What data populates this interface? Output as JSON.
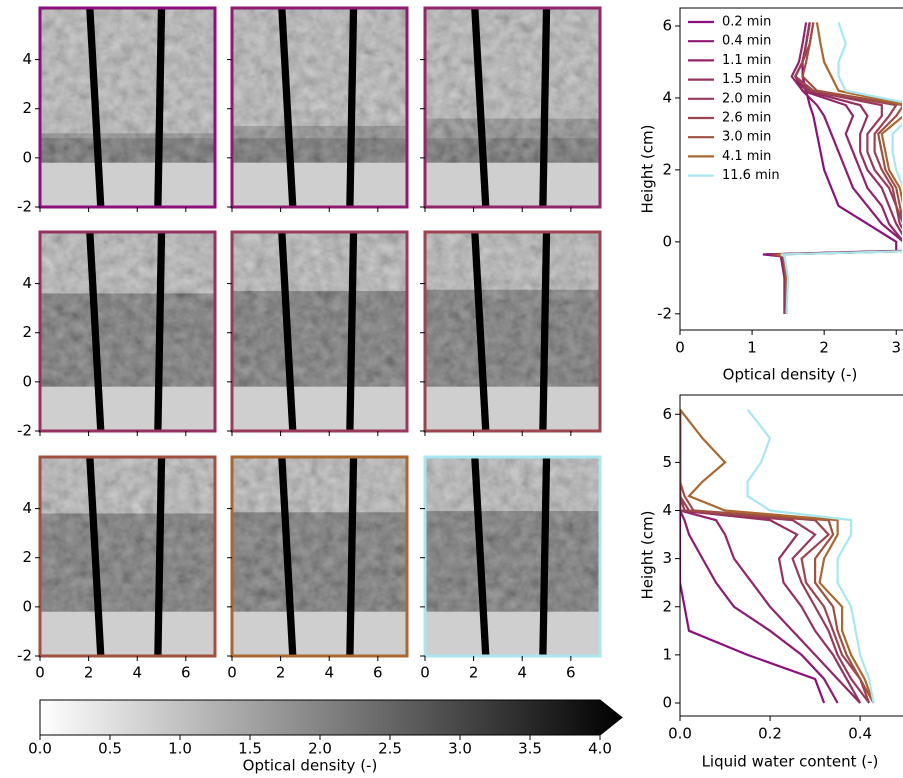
{
  "chart_data": [
    {
      "type": "image_grid",
      "xlim": [
        0,
        7.2
      ],
      "xticks": [
        0,
        2,
        4,
        6
      ],
      "ylim": [
        -2,
        6.1
      ],
      "yticks": [
        -2,
        0,
        2,
        4
      ],
      "panels": 9
    },
    {
      "type": "colorbar",
      "xlim": [
        0,
        4
      ],
      "xticks": [
        {
          "value": 0,
          "label": "0.0"
        },
        {
          "value": 0.5,
          "label": "0.5"
        },
        {
          "value": 1,
          "label": "1.0"
        },
        {
          "value": 1.5,
          "label": "1.5"
        },
        {
          "value": 2,
          "label": "2.0"
        },
        {
          "value": 2.5,
          "label": "2.5"
        },
        {
          "value": 3,
          "label": "3.0"
        },
        {
          "value": 3.5,
          "label": "3.5"
        },
        {
          "value": 4,
          "label": "4.0"
        }
      ],
      "xlabel": "Optical density (-)"
    },
    {
      "type": "line",
      "xlabel": "Optical density (-)",
      "ylabel": "Height (cm)",
      "xlim": [
        0,
        3.08
      ],
      "xticks": [
        0,
        1,
        2,
        3
      ],
      "ylim": [
        -2.45,
        6.5
      ],
      "yticks": [
        -2,
        0,
        2,
        4,
        6
      ],
      "legend": "upper left",
      "y": [
        -2,
        -1,
        -0.4,
        -0.35,
        -0.25,
        0,
        0.5,
        1,
        1.5,
        2,
        2.5,
        3,
        3.5,
        3.8,
        4.2,
        4.6,
        5,
        5.5,
        6.1
      ],
      "series": [
        {
          "name": "0.2 min",
          "color": "#8b0f7d",
          "values": [
            1.45,
            1.45,
            1.4,
            1.15,
            3.0,
            3.0,
            2.6,
            2.2,
            2.1,
            2.0,
            1.95,
            1.9,
            1.85,
            1.8,
            1.75,
            1.7,
            1.7,
            1.75,
            1.8
          ]
        },
        {
          "name": "0.4 min",
          "color": "#8f1a72",
          "values": [
            1.45,
            1.45,
            1.4,
            1.2,
            3.1,
            3.1,
            2.8,
            2.6,
            2.4,
            2.3,
            2.2,
            2.1,
            2.0,
            1.9,
            1.7,
            1.6,
            1.7,
            1.75,
            1.8
          ]
        },
        {
          "name": "1.1 min",
          "color": "#93256a",
          "values": [
            1.45,
            1.47,
            1.42,
            1.25,
            3.2,
            3.1,
            2.9,
            2.8,
            2.6,
            2.5,
            2.4,
            2.3,
            2.4,
            2.3,
            1.7,
            1.55,
            1.65,
            1.7,
            1.75
          ]
        },
        {
          "name": "1.5 min",
          "color": "#963060",
          "values": [
            1.46,
            1.46,
            1.42,
            1.25,
            3.2,
            3.15,
            3.0,
            2.9,
            2.8,
            2.6,
            2.5,
            2.5,
            2.6,
            2.5,
            1.75,
            1.6,
            1.7,
            1.75,
            1.8
          ]
        },
        {
          "name": "2.0 min",
          "color": "#993a58",
          "values": [
            1.46,
            1.47,
            1.43,
            1.3,
            3.25,
            3.2,
            3.05,
            3.0,
            2.9,
            2.7,
            2.6,
            2.6,
            2.8,
            2.8,
            1.8,
            1.6,
            1.7,
            1.75,
            1.8
          ]
        },
        {
          "name": "2.6 min",
          "color": "#9c4450",
          "values": [
            1.47,
            1.47,
            1.43,
            1.3,
            3.25,
            3.2,
            3.1,
            3.0,
            2.95,
            2.8,
            2.7,
            2.7,
            2.9,
            3.0,
            1.85,
            1.6,
            1.7,
            1.8,
            1.85
          ]
        },
        {
          "name": "3.0 min",
          "color": "#a05040",
          "values": [
            1.47,
            1.48,
            1.44,
            1.35,
            3.3,
            3.25,
            3.1,
            3.05,
            3.0,
            2.85,
            2.8,
            2.75,
            3.0,
            3.1,
            1.9,
            1.7,
            1.75,
            1.8,
            1.85
          ]
        },
        {
          "name": "4.1 min",
          "color": "#a86830",
          "values": [
            1.48,
            1.48,
            1.44,
            1.35,
            3.3,
            3.25,
            3.15,
            3.1,
            3.05,
            2.9,
            2.85,
            2.8,
            3.1,
            3.15,
            2.2,
            2.1,
            2.0,
            1.95,
            1.9
          ]
        },
        {
          "name": "11.6 min",
          "color": "#a8e6f0",
          "values": [
            1.48,
            1.5,
            1.45,
            1.4,
            3.35,
            3.3,
            3.2,
            3.2,
            3.1,
            3.0,
            2.95,
            2.95,
            3.2,
            3.3,
            2.3,
            2.2,
            2.2,
            2.3,
            2.2
          ]
        }
      ]
    },
    {
      "type": "line",
      "xlabel": "Liquid water content (-)",
      "ylabel": "Height (cm)",
      "xlim": [
        0,
        0.493
      ],
      "xticks": [
        {
          "value": 0,
          "label": "0.0"
        },
        {
          "value": 0.2,
          "label": "0.2"
        },
        {
          "value": 0.4,
          "label": "0.4"
        }
      ],
      "ylim": [
        -0.27,
        6.4
      ],
      "yticks": [
        0,
        1,
        2,
        3,
        4,
        5,
        6
      ],
      "y": [
        0,
        0.5,
        1,
        1.5,
        2,
        2.5,
        3,
        3.5,
        3.8,
        4.0,
        4.3,
        4.6,
        5,
        5.5,
        6.1
      ],
      "series": [
        {
          "color": "#8b0f7d",
          "values": [
            0.32,
            0.3,
            0.15,
            0.02,
            0.01,
            0,
            0,
            0,
            0,
            0,
            0,
            0,
            0,
            0,
            0
          ]
        },
        {
          "color": "#8f1a72",
          "values": [
            0.35,
            0.32,
            0.27,
            0.2,
            0.12,
            0.08,
            0.05,
            0.02,
            0.01,
            0,
            0,
            0,
            0,
            0,
            0
          ]
        },
        {
          "color": "#93256a",
          "values": [
            0.4,
            0.35,
            0.3,
            0.25,
            0.2,
            0.16,
            0.12,
            0.1,
            0.08,
            0,
            0,
            0,
            0,
            0,
            0
          ]
        },
        {
          "color": "#963060",
          "values": [
            0.4,
            0.37,
            0.34,
            0.3,
            0.27,
            0.23,
            0.22,
            0.26,
            0.2,
            0,
            0,
            0,
            0,
            0,
            0
          ]
        },
        {
          "color": "#993a58",
          "values": [
            0.42,
            0.38,
            0.35,
            0.33,
            0.3,
            0.27,
            0.25,
            0.3,
            0.25,
            0.01,
            0,
            0,
            0,
            0,
            0
          ]
        },
        {
          "color": "#9c4450",
          "values": [
            0.42,
            0.4,
            0.36,
            0.34,
            0.32,
            0.28,
            0.27,
            0.33,
            0.3,
            0.02,
            0,
            0,
            0,
            0,
            0
          ]
        },
        {
          "color": "#a05040",
          "values": [
            0.43,
            0.4,
            0.37,
            0.35,
            0.34,
            0.3,
            0.3,
            0.34,
            0.33,
            0.03,
            0.01,
            0,
            0,
            0,
            0
          ]
        },
        {
          "color": "#a86830",
          "values": [
            0.43,
            0.41,
            0.38,
            0.36,
            0.36,
            0.31,
            0.32,
            0.35,
            0.35,
            0.1,
            0.02,
            0.05,
            0.1,
            0.05,
            0
          ]
        },
        {
          "color": "#a8e6f0",
          "values": [
            0.43,
            0.42,
            0.4,
            0.39,
            0.38,
            0.35,
            0.35,
            0.38,
            0.38,
            0.2,
            0.15,
            0.15,
            0.18,
            0.2,
            0.15
          ]
        }
      ]
    }
  ]
}
